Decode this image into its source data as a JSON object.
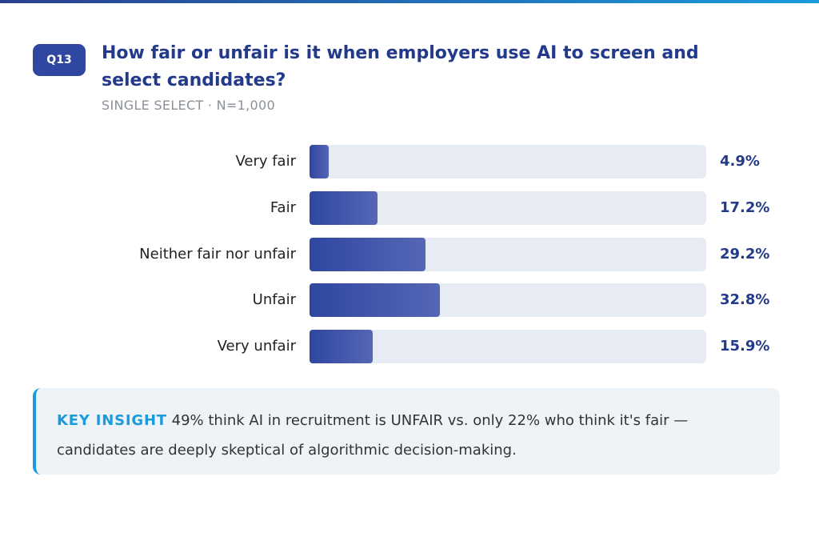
{
  "header": {
    "badge": "Q13",
    "title": "How fair or unfair is it when employers use AI to screen and select candidates?",
    "subtitle": "SINGLE SELECT · N=1,000"
  },
  "chart_data": {
    "type": "bar",
    "orientation": "horizontal",
    "categories": [
      "Very fair",
      "Fair",
      "Neither fair nor unfair",
      "Unfair",
      "Very unfair"
    ],
    "values": [
      4.9,
      17.2,
      29.2,
      32.8,
      15.9
    ],
    "value_labels": [
      "4.9%",
      "17.2%",
      "29.2%",
      "32.8%",
      "15.9%"
    ],
    "xlim": [
      0,
      100
    ],
    "unit": "%",
    "colors": {
      "bar": "#2f47a0",
      "track": "#e7ecf4",
      "value": "#23398a"
    }
  },
  "insight": {
    "label": "KEY INSIGHT",
    "text": "49% think AI in recruitment is UNFAIR vs. only 22% who think it's fair — candidates are deeply skeptical of algorithmic decision-making."
  }
}
